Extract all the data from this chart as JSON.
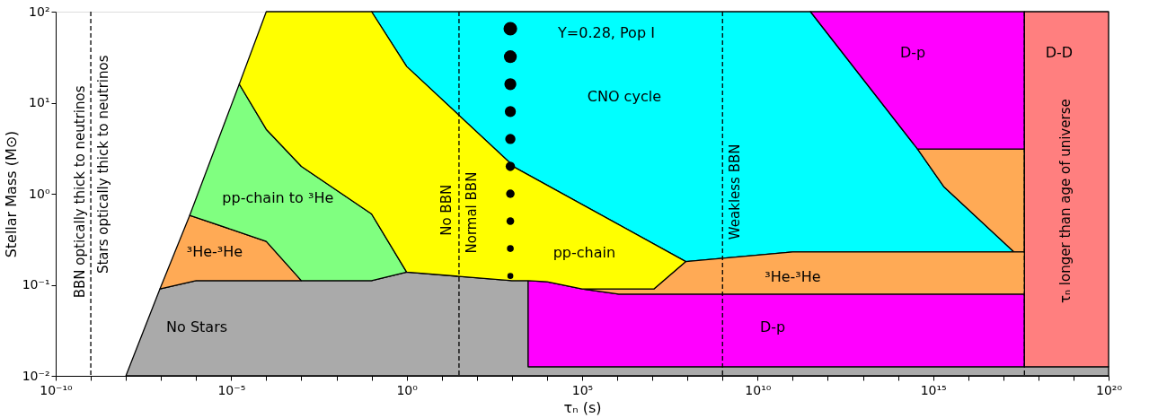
{
  "chart_data": {
    "type": "area",
    "xlabel": "τₙ (s)",
    "ylabel": "Stellar Mass (M⊙)",
    "log": "xy",
    "grid": false,
    "xlim": [
      1e-10,
      1e+20
    ],
    "ylim": [
      0.01,
      100
    ],
    "xticks": [
      {
        "value": 1e-10,
        "label": "10⁻¹⁰"
      },
      {
        "value": 1e-09,
        "label": null
      },
      {
        "value": 1e-08,
        "label": null
      },
      {
        "value": 1e-07,
        "label": null
      },
      {
        "value": 1e-06,
        "label": null
      },
      {
        "value": 1e-05,
        "label": "10⁻⁵"
      },
      {
        "value": 0.0001,
        "label": null
      },
      {
        "value": 0.001,
        "label": null
      },
      {
        "value": 0.01,
        "label": null
      },
      {
        "value": 0.1,
        "label": null
      },
      {
        "value": 1,
        "label": "10⁰"
      },
      {
        "value": 10,
        "label": null
      },
      {
        "value": 100,
        "label": null
      },
      {
        "value": 1000,
        "label": null
      },
      {
        "value": 10000.0,
        "label": null
      },
      {
        "value": 100000.0,
        "label": "10⁵"
      },
      {
        "value": 1000000.0,
        "label": null
      },
      {
        "value": 10000000.0,
        "label": null
      },
      {
        "value": 100000000.0,
        "label": null
      },
      {
        "value": 1000000000.0,
        "label": null
      },
      {
        "value": 10000000000.0,
        "label": "10¹⁰"
      },
      {
        "value": 100000000000.0,
        "label": null
      },
      {
        "value": 1000000000000.0,
        "label": null
      },
      {
        "value": 10000000000000.0,
        "label": null
      },
      {
        "value": 100000000000000.0,
        "label": null
      },
      {
        "value": 1000000000000000.0,
        "label": "10¹⁵"
      },
      {
        "value": 1e+16,
        "label": null
      },
      {
        "value": 1e+17,
        "label": null
      },
      {
        "value": 1e+18,
        "label": null
      },
      {
        "value": 1e+19,
        "label": null
      },
      {
        "value": 1e+20,
        "label": "10²⁰"
      }
    ],
    "yticks": [
      {
        "value": 0.01,
        "label": "10⁻²"
      },
      {
        "value": 0.1,
        "label": "10⁻¹"
      },
      {
        "value": 1,
        "label": "10⁰"
      },
      {
        "value": 10,
        "label": "10¹"
      },
      {
        "value": 100,
        "label": "10²"
      }
    ],
    "series": [
      {
        "color": "#aaaaaa",
        "x": [
          1e-08,
          9.3e-08,
          1e-06,
          0.1,
          1,
          1000,
          2900,
          2900,
          1e+20,
          1e+20
        ],
        "values": [
          0.01,
          0.09,
          0.111,
          0.111,
          0.138,
          0.111,
          0.111,
          0.0126,
          0.0126,
          0.01
        ]
      },
      {
        "color": "#ffaa55",
        "x": [
          9.3e-08,
          6.6e-07,
          1e-06,
          0.0001,
          0.001,
          1e-06
        ],
        "values": [
          0.09,
          0.58,
          0.55,
          0.3,
          0.111,
          0.111
        ]
      },
      {
        "color": "#80ff80",
        "x": [
          6.6e-07,
          1.7e-05,
          0.0001,
          0.001,
          0.1,
          1,
          0.1,
          0.001,
          0.0001
        ],
        "values": [
          0.58,
          16,
          5.1,
          2.0,
          0.6,
          0.138,
          0.111,
          0.111,
          0.3
        ]
      },
      {
        "color": "#00ffff",
        "x": [
          0.1,
          320000000000.0,
          360000000000000.0,
          2000000000000000.0,
          2e+17,
          100000000000.0,
          90000000.0,
          1200,
          1
        ],
        "values": [
          100,
          100,
          3.1,
          1.2,
          0.23,
          0.23,
          0.18,
          1.95,
          25
        ]
      },
      {
        "color": "#ffaa55",
        "x": [
          360000000000000.0,
          4e+17,
          4e+17,
          2e+17,
          2000000000000000.0
        ],
        "values": [
          3.1,
          3.1,
          0.23,
          0.23,
          1.2
        ]
      },
      {
        "color": "#ff00ff",
        "x": [
          2900,
          10000.0,
          100000.0,
          1100000.0,
          4e+17,
          4e+17,
          2900
        ],
        "values": [
          0.111,
          0.108,
          0.09,
          0.079,
          0.079,
          0.0126,
          0.0126
        ]
      },
      {
        "color": "#ff00ff",
        "x": [
          320000000000.0,
          4e+17,
          4e+17,
          360000000000000.0
        ],
        "values": [
          100,
          100,
          3.1,
          3.1
        ]
      },
      {
        "color": "#ff7f7f",
        "x": [
          4e+17,
          1e+20,
          1e+20,
          4e+17
        ],
        "values": [
          100,
          100,
          0.0126,
          0.0126
        ]
      },
      {
        "color": "#ffaa55",
        "x": [
          100000.0,
          11000000.0,
          90000000.0,
          100000000000.0,
          2e+17,
          4e+17,
          4e+17,
          1100000.0
        ],
        "values": [
          0.09,
          0.09,
          0.18,
          0.23,
          0.23,
          0.23,
          0.079,
          0.079
        ]
      },
      {
        "color": "#ffff00",
        "x": [
          1.7e-05,
          0.0001,
          0.1,
          1,
          1200,
          90000000.0,
          11000000.0,
          100000.0,
          10000.0,
          2900,
          1000,
          1,
          0.1,
          0.001,
          0.0001
        ],
        "values": [
          16,
          100,
          100,
          25,
          1.95,
          0.18,
          0.09,
          0.09,
          0.108,
          0.111,
          0.111,
          0.138,
          0.6,
          2.0,
          5.1
        ]
      },
      {
        "type": "bubble",
        "color": "#000000",
        "marker": "circle",
        "x": [
          900,
          900,
          900,
          900,
          900,
          900,
          900,
          900,
          900,
          900
        ],
        "values": [
          65,
          32,
          16,
          8,
          4,
          2,
          1,
          0.5,
          0.25,
          0.125
        ],
        "sizes": [
          1,
          0.88,
          0.77,
          0.66,
          0.56,
          0.47,
          0.39,
          0.32,
          0.25,
          0.19
        ]
      }
    ],
    "ref_lines": [
      {
        "axis": "x",
        "value": 1e-09,
        "line_style": "dashed"
      },
      {
        "axis": "x",
        "value": 31,
        "line_style": "dashed"
      },
      {
        "axis": "x",
        "value": 1000000000.0,
        "line_style": "dashed"
      },
      {
        "axis": "x",
        "value": 4e+17,
        "line_style": "dashed"
      }
    ],
    "annotations": [
      {
        "text": "BBN optically thick to neutrinos",
        "x": 1e-09,
        "y": 1.05
      },
      {
        "text": "Stars optically thick to neutrinos",
        "x": 1e-09,
        "y": 2.1
      },
      {
        "text": "No BBN",
        "x": 31,
        "y": 0.66
      },
      {
        "text": "Normal BBN",
        "x": 31,
        "y": 0.62
      },
      {
        "text": "Weakless BBN",
        "x": 1000000000.0,
        "y": 1.05
      },
      "τₙ longer than age of universe",
      "pp-chain to ³He",
      "³He-³He",
      "No Stars",
      "pp-chain",
      "Y=0.28, Pop I",
      "CNO cycle",
      "D-p",
      "D-D",
      "³He-³He",
      "D-p"
    ]
  }
}
